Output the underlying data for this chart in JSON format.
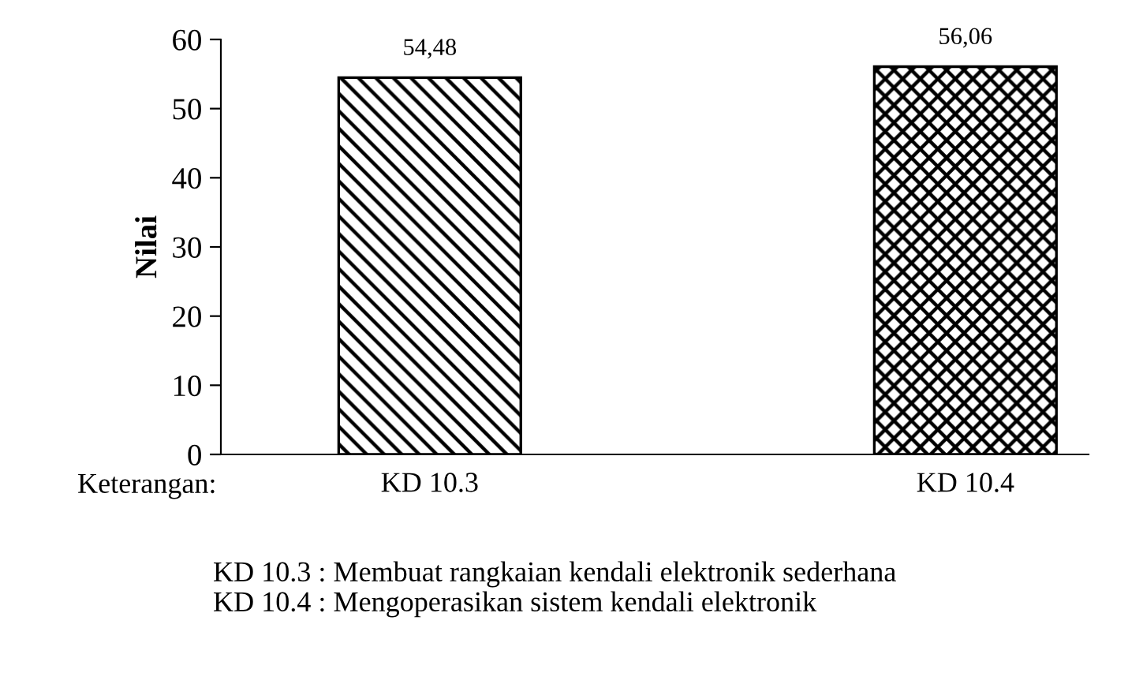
{
  "chart_data": {
    "type": "bar",
    "ylabel": "Nilai",
    "xlabel": "Keterangan:",
    "categories": [
      "KD 10.3",
      "KD 10.4"
    ],
    "values": [
      54.48,
      56.06
    ],
    "value_labels": [
      "54,48",
      "56,06"
    ],
    "colors": [
      "#000000",
      "#000000"
    ],
    "ylim": [
      0,
      60
    ],
    "yticks": [
      0,
      10,
      20,
      30,
      40,
      50,
      60
    ],
    "grid": false,
    "annotations": [
      "KD 10.3 : Membuat rangkaian kendali elektronik sederhana",
      "KD 10.4 : Mengoperasikan sistem kendali elektronik"
    ]
  }
}
